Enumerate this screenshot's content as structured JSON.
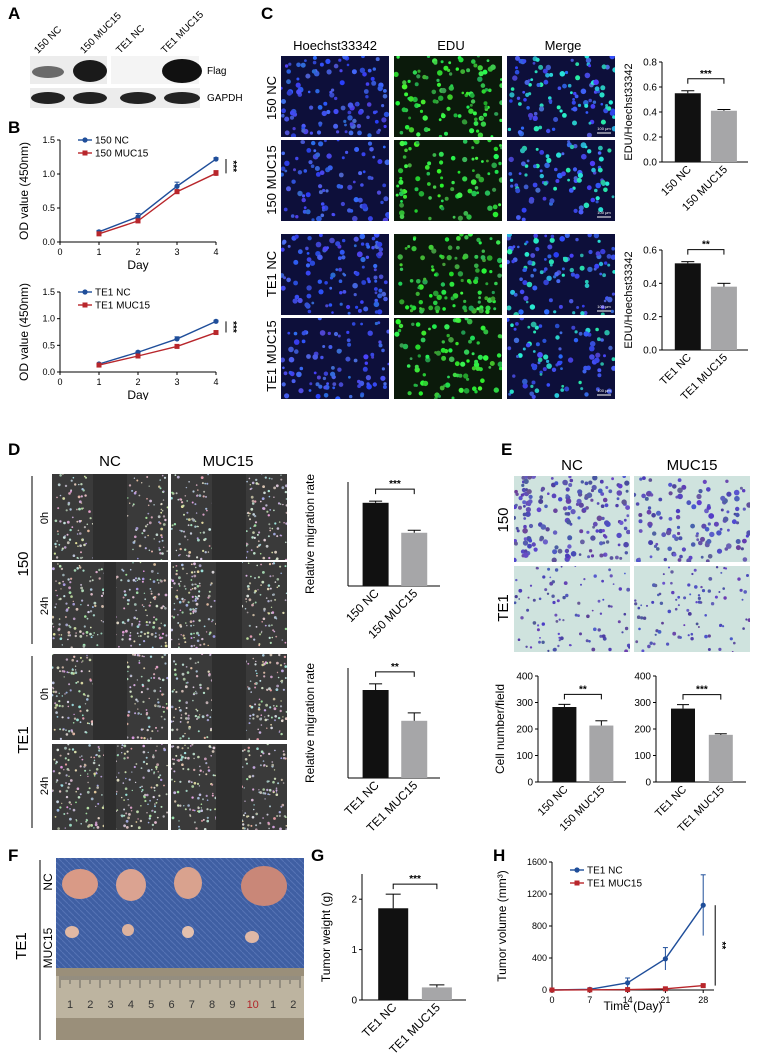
{
  "panels": {
    "A": "A",
    "B": "B",
    "C": "C",
    "D": "D",
    "E": "E",
    "F": "F",
    "G": "G",
    "H": "H"
  },
  "blot": {
    "lanes": [
      "150 NC",
      "150 MUC15",
      "TE1 NC",
      "TE1 MUC15"
    ],
    "bands": [
      "Flag",
      "GAPDH"
    ]
  },
  "microscopy": {
    "edu_columns": [
      "Hoechst33342",
      "EDU",
      "Merge"
    ],
    "edu_rows": [
      "150 NC",
      "150 MUC15",
      "TE1 NC",
      "TE1 MUC15"
    ],
    "scale": "100 μm",
    "wound_columns": [
      "NC",
      "MUC15"
    ],
    "wound_groups": [
      "150",
      "TE1"
    ],
    "wound_times": [
      "0h",
      "24h"
    ],
    "transwell_columns": [
      "NC",
      "MUC15"
    ],
    "transwell_rows": [
      "150",
      "TE1"
    ],
    "tumor_group": "TE1",
    "tumor_rows": [
      "NC",
      "MUC15"
    ],
    "ruler_digits": [
      "1",
      "2",
      "3",
      "4",
      "5",
      "6",
      "7",
      "8",
      "9",
      "10",
      "1",
      "2"
    ]
  },
  "colors": {
    "blue": "#1f4e9a",
    "red": "#b8262b",
    "black": "#111111",
    "grey": "#a6a6a8"
  },
  "chart_data": [
    {
      "id": "B1",
      "type": "line",
      "xlabel": "Day",
      "ylabel": "OD value (450nm)",
      "x": [
        1,
        2,
        3,
        4
      ],
      "xlim": [
        0,
        4
      ],
      "ylim": [
        0,
        1.5
      ],
      "xticks": [
        "0",
        "1",
        "2",
        "3",
        "4"
      ],
      "yticks": [
        "0.0",
        "0.5",
        "1.0",
        "1.5"
      ],
      "legend": "top-left",
      "significance": "***",
      "series": [
        {
          "name": "150 NC",
          "values": [
            0.15,
            0.37,
            0.82,
            1.22
          ],
          "errors": [
            0.02,
            0.05,
            0.06,
            0.02
          ],
          "color": "#1f4e9a",
          "marker": "circle"
        },
        {
          "name": "150 MUC15",
          "values": [
            0.12,
            0.31,
            0.74,
            1.01
          ],
          "errors": [
            0.02,
            0.03,
            0.03,
            0.04
          ],
          "color": "#b8262b",
          "marker": "square"
        }
      ]
    },
    {
      "id": "B2",
      "type": "line",
      "xlabel": "Day",
      "ylabel": "OD value (450nm)",
      "x": [
        1,
        2,
        3,
        4
      ],
      "xlim": [
        0,
        4
      ],
      "ylim": [
        0,
        1.5
      ],
      "xticks": [
        "0",
        "1",
        "2",
        "3",
        "4"
      ],
      "yticks": [
        "0.0",
        "0.5",
        "1.0",
        "1.5"
      ],
      "legend": "top-left",
      "significance": "***",
      "series": [
        {
          "name": "TE1 NC",
          "values": [
            0.15,
            0.37,
            0.62,
            0.95
          ],
          "errors": [
            0.01,
            0.02,
            0.04,
            0.02
          ],
          "color": "#1f4e9a",
          "marker": "circle"
        },
        {
          "name": "TE1 MUC15",
          "values": [
            0.13,
            0.3,
            0.48,
            0.74
          ],
          "errors": [
            0.01,
            0.01,
            0.02,
            0.03
          ],
          "color": "#b8262b",
          "marker": "square"
        }
      ]
    },
    {
      "id": "C1",
      "type": "bar",
      "categories": [
        "150 NC",
        "150 MUC15"
      ],
      "values": [
        0.55,
        0.41
      ],
      "errors": [
        0.02,
        0.01
      ],
      "ylabel": "EDU/Hoechst33342",
      "ylim": [
        0,
        0.8
      ],
      "yticks": [
        "0.0",
        "0.2",
        "0.4",
        "0.6",
        "0.8"
      ],
      "significance": "***"
    },
    {
      "id": "C2",
      "type": "bar",
      "categories": [
        "TE1 NC",
        "TE1 MUC15"
      ],
      "values": [
        0.52,
        0.38
      ],
      "errors": [
        0.01,
        0.02
      ],
      "ylabel": "EDU/Hoechst33342",
      "ylim": [
        0,
        0.6
      ],
      "yticks": [
        "0.0",
        "0.2",
        "0.4",
        "0.6"
      ],
      "significance": "**"
    },
    {
      "id": "D1",
      "type": "bar",
      "categories": [
        "150 NC",
        "150 MUC15"
      ],
      "values": [
        1.0,
        0.64
      ],
      "errors": [
        0.02,
        0.03
      ],
      "ylabel": "Relative migration rate",
      "ylim": [
        0,
        1.25
      ],
      "yticks": [],
      "significance": "***"
    },
    {
      "id": "D2",
      "type": "bar",
      "categories": [
        "TE1 NC",
        "TE1 MUC15"
      ],
      "values": [
        1.0,
        0.65
      ],
      "errors": [
        0.07,
        0.09
      ],
      "ylabel": "Relative migration rate",
      "ylim": [
        0,
        1.25
      ],
      "yticks": [],
      "significance": "**"
    },
    {
      "id": "E1",
      "type": "bar",
      "categories": [
        "150 NC",
        "150 MUC15"
      ],
      "values": [
        283,
        213
      ],
      "errors": [
        10,
        18
      ],
      "ylabel": "Cell number/field",
      "ylim": [
        0,
        400
      ],
      "yticks": [
        "0",
        "100",
        "200",
        "300",
        "400"
      ],
      "significance": "**"
    },
    {
      "id": "E2",
      "type": "bar",
      "categories": [
        "TE1 NC",
        "TE1 MUC15"
      ],
      "values": [
        277,
        178
      ],
      "errors": [
        15,
        4
      ],
      "ylabel": "",
      "ylim": [
        0,
        400
      ],
      "yticks": [
        "0",
        "100",
        "200",
        "300",
        "400"
      ],
      "significance": "***"
    },
    {
      "id": "G",
      "type": "bar",
      "categories": [
        "TE1 NC",
        "TE1 MUC15"
      ],
      "values": [
        1.82,
        0.25
      ],
      "errors": [
        0.28,
        0.05
      ],
      "ylabel": "Tumor weight (g)",
      "ylim": [
        0,
        2.5
      ],
      "yticks": [
        "0",
        "1",
        "2"
      ],
      "significance": "***"
    },
    {
      "id": "H",
      "type": "line",
      "xlabel": "Time (Day)",
      "ylabel": "Tumor volume (mm³)",
      "x": [
        0,
        7,
        14,
        21,
        28
      ],
      "xlim": [
        0,
        30
      ],
      "ylim": [
        0,
        1600
      ],
      "xticks": [
        "0",
        "7",
        "14",
        "21",
        "28"
      ],
      "yticks": [
        "0",
        "400",
        "800",
        "1200",
        "1600"
      ],
      "legend": "top-left",
      "significance": "**",
      "series": [
        {
          "name": "TE1 NC",
          "values": [
            0,
            8,
            90,
            390,
            1060
          ],
          "errors": [
            0,
            5,
            60,
            140,
            380
          ],
          "color": "#1f4e9a",
          "marker": "circle"
        },
        {
          "name": "TE1 MUC15",
          "values": [
            0,
            2,
            5,
            15,
            55
          ],
          "errors": [
            0,
            1,
            3,
            6,
            10
          ],
          "color": "#b8262b",
          "marker": "square"
        }
      ]
    }
  ]
}
